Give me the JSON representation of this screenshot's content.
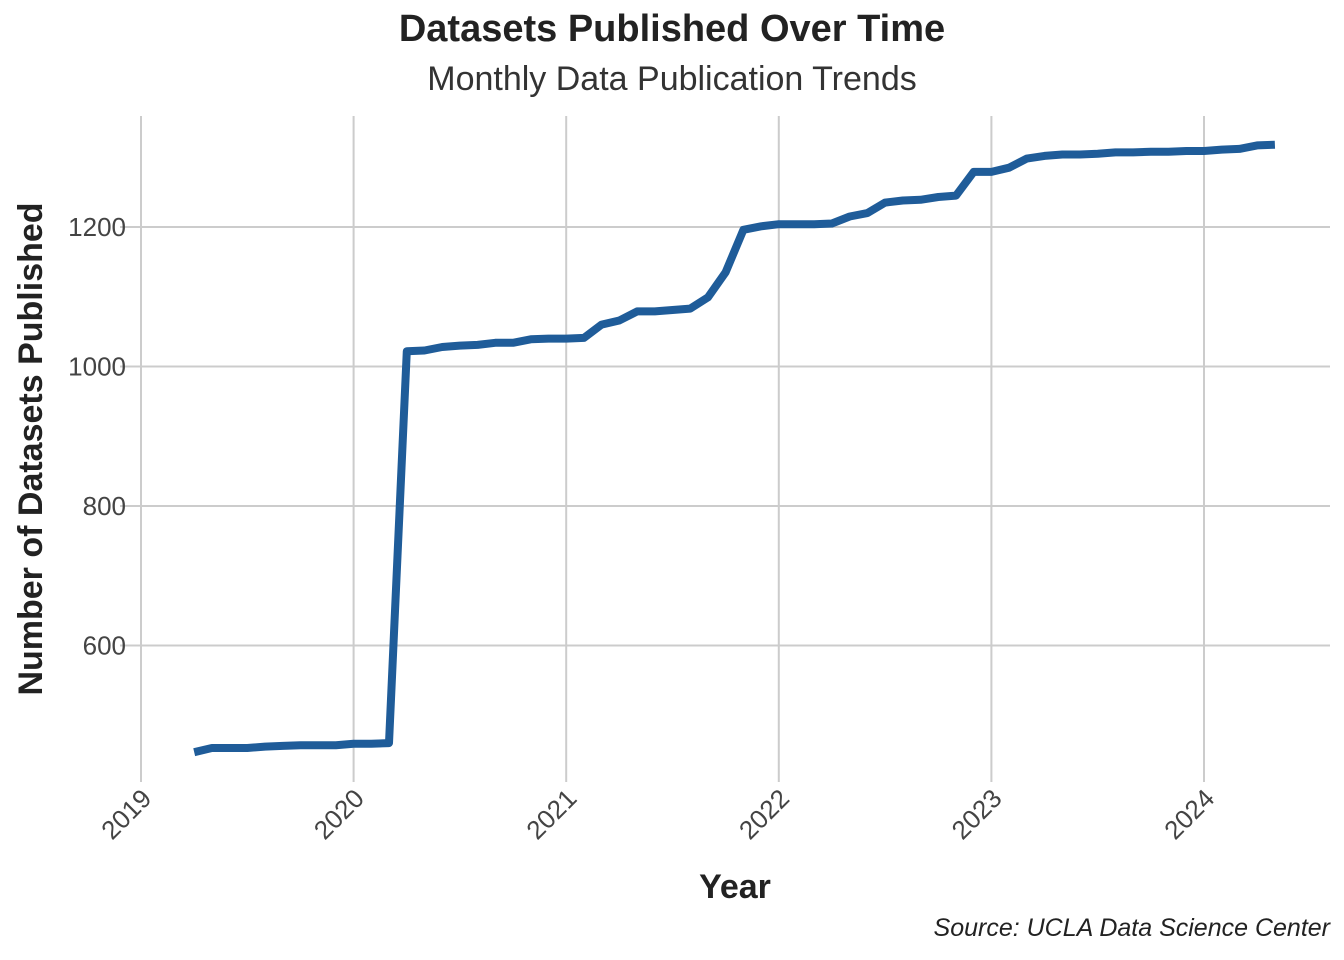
{
  "chart_data": {
    "type": "line",
    "title": "Datasets Published Over Time",
    "subtitle": "Monthly Data Publication Trends",
    "xlabel": "Year",
    "ylabel": "Number of Datasets Published",
    "caption": "Source: UCLA Data Science Center",
    "x_tick_labels": [
      "2019",
      "2020",
      "2021",
      "2022",
      "2023",
      "2024"
    ],
    "y_tick_labels": [
      "600",
      "800",
      "1000",
      "1200"
    ],
    "y_ticks": [
      600,
      800,
      1000,
      1200
    ],
    "xlim": [
      "2019-01-01",
      "2024-12-31"
    ],
    "ylim": [
      424,
      1360
    ],
    "grid": true,
    "legend": "none",
    "line_color": "#1f5c99",
    "series": [
      {
        "x": [
          "2019-04",
          "2019-05",
          "2019-06",
          "2019-07",
          "2019-08",
          "2019-09",
          "2019-10",
          "2019-11",
          "2019-12",
          "2020-01",
          "2020-02",
          "2020-03",
          "2020-04",
          "2020-05",
          "2020-06",
          "2020-07",
          "2020-08",
          "2020-09",
          "2020-10",
          "2020-11",
          "2020-12",
          "2021-01",
          "2021-02",
          "2021-03",
          "2021-04",
          "2021-05",
          "2021-06",
          "2021-07",
          "2021-08",
          "2021-09",
          "2021-10",
          "2021-11",
          "2021-12",
          "2022-01",
          "2022-02",
          "2022-03",
          "2022-04",
          "2022-05",
          "2022-06",
          "2022-07",
          "2022-08",
          "2022-09",
          "2022-10",
          "2022-11",
          "2022-12",
          "2023-01",
          "2023-02",
          "2023-03",
          "2023-04",
          "2023-05",
          "2023-06",
          "2023-07",
          "2023-08",
          "2023-09",
          "2023-10",
          "2023-11",
          "2023-12",
          "2024-01",
          "2024-02",
          "2024-03",
          "2024-04",
          "2024-05"
        ],
        "values": [
          447,
          453,
          453,
          453,
          455,
          456,
          457,
          457,
          457,
          459,
          459,
          460,
          1022,
          1023,
          1028,
          1030,
          1031,
          1034,
          1034,
          1039,
          1040,
          1040,
          1041,
          1060,
          1066,
          1079,
          1079,
          1081,
          1083,
          1099,
          1135,
          1196,
          1201,
          1204,
          1204,
          1204,
          1205,
          1215,
          1220,
          1235,
          1238,
          1239,
          1243,
          1245,
          1279,
          1279,
          1285,
          1298,
          1302,
          1304,
          1304,
          1305,
          1307,
          1307,
          1308,
          1308,
          1309,
          1309,
          1311,
          1312,
          1317,
          1318
        ]
      }
    ]
  }
}
